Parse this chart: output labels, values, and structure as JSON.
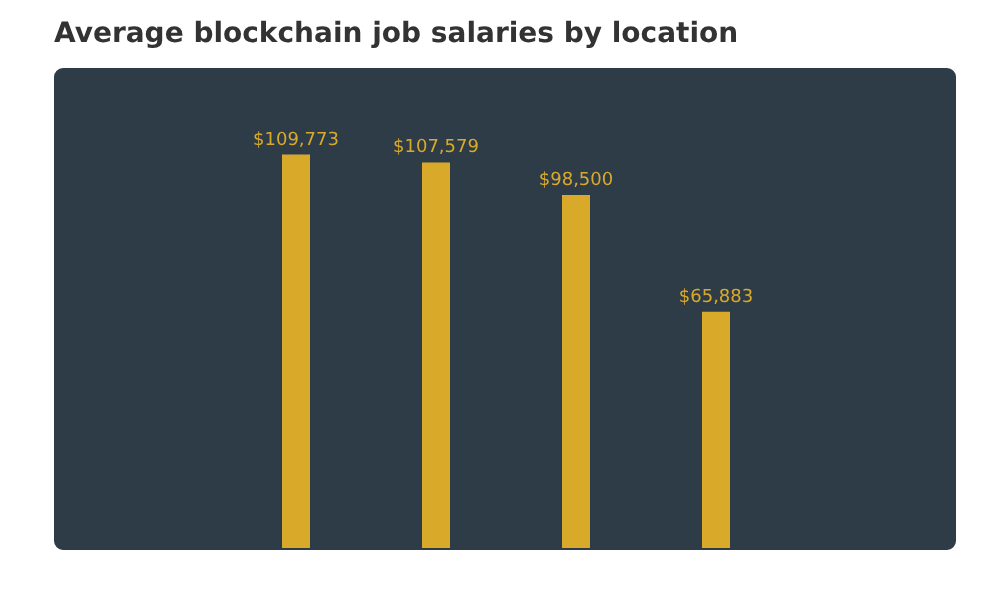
{
  "chart_data": {
    "type": "bar",
    "title": "Average blockchain job salaries by location",
    "categories": [
      null,
      null,
      null,
      null
    ],
    "values": [
      109773,
      107579,
      98500,
      65883
    ],
    "value_labels": [
      "$109,773",
      "$107,579",
      "$98,500",
      "$65,883"
    ],
    "color": "#d9a92a"
  }
}
